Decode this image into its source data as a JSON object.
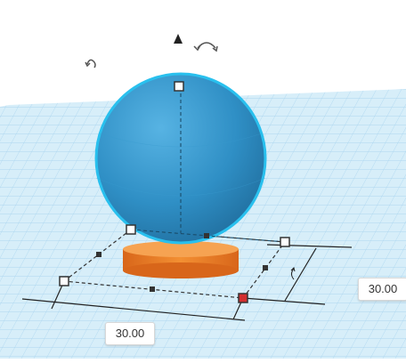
{
  "dimensions": {
    "width_label": "30.00",
    "depth_label": "30.00"
  },
  "colors": {
    "workplane": "#cfe9f7",
    "grid_line": "#a8d3ee",
    "sphere": "#2f8fc5",
    "sphere_highlight": "#5ab4e4",
    "sphere_outline": "#23b7e5",
    "base": "#ef7e22",
    "handle_active": "#d32f2f",
    "handle_dark": "#333333"
  },
  "icons": [
    "rotate-left-icon",
    "lift-arrow-icon",
    "rotate-right-icon"
  ]
}
